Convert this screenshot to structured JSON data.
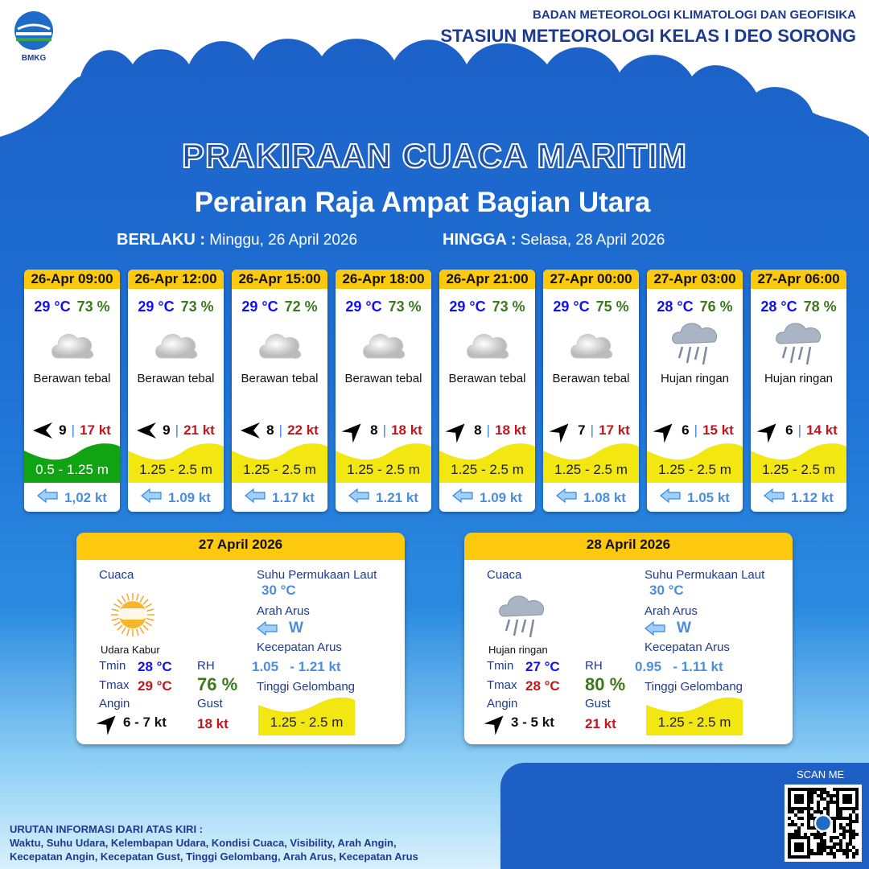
{
  "header": {
    "logo_text": "BMKG",
    "org_line1": "BADAN METEOROLOGI KLIMATOLOGI DAN GEOFISIKA",
    "org_line2": "STASIUN METEOROLOGI KELAS I DEO SORONG"
  },
  "title": "PRAKIRAAN CUACA MARITIM",
  "subtitle": "Perairan Raja Ampat Bagian Utara",
  "validity": {
    "from_label": "BERLAKU :",
    "from": "Minggu, 26 April 2026",
    "to_label": "HINGGA :",
    "to": "Selasa, 28 April 2026"
  },
  "colors": {
    "header_yellow": "#fdc90f",
    "wave_green": "#10a312",
    "wave_yellow": "#f2e711",
    "temp_blue": "#1010f0",
    "rh_green": "#3b7a1c",
    "gust_red": "#c3161c",
    "current_blue": "#4a8fdf"
  },
  "forecasts": [
    {
      "time": "26-Apr 09:00",
      "temp": "29 °C",
      "rh": "73 %",
      "icon": "cloud-icon",
      "condition": "Berawan tebal",
      "wind_dir": "west",
      "wind_speed": "9",
      "gust": "17 kt",
      "wave": "0.5 - 1.25 m",
      "wave_color": "green",
      "current": "1,02 kt"
    },
    {
      "time": "26-Apr 12:00",
      "temp": "29 °C",
      "rh": "73 %",
      "icon": "cloud-icon",
      "condition": "Berawan tebal",
      "wind_dir": "west",
      "wind_speed": "9",
      "gust": "21 kt",
      "wave": "1.25 - 2.5 m",
      "wave_color": "yellow",
      "current": "1.09 kt"
    },
    {
      "time": "26-Apr 15:00",
      "temp": "29 °C",
      "rh": "72 %",
      "icon": "cloud-icon",
      "condition": "Berawan tebal",
      "wind_dir": "west",
      "wind_speed": "8",
      "gust": "22 kt",
      "wave": "1.25 - 2.5 m",
      "wave_color": "yellow",
      "current": "1.17 kt"
    },
    {
      "time": "26-Apr 18:00",
      "temp": "29 °C",
      "rh": "73 %",
      "icon": "cloud-icon",
      "condition": "Berawan tebal",
      "wind_dir": "northeast",
      "wind_speed": "8",
      "gust": "18 kt",
      "wave": "1.25 - 2.5 m",
      "wave_color": "yellow",
      "current": "1.21 kt"
    },
    {
      "time": "26-Apr 21:00",
      "temp": "29 °C",
      "rh": "73 %",
      "icon": "cloud-icon",
      "condition": "Berawan tebal",
      "wind_dir": "northeast",
      "wind_speed": "8",
      "gust": "18 kt",
      "wave": "1.25 - 2.5 m",
      "wave_color": "yellow",
      "current": "1.09 kt"
    },
    {
      "time": "27-Apr 00:00",
      "temp": "29 °C",
      "rh": "75 %",
      "icon": "cloud-icon",
      "condition": "Berawan tebal",
      "wind_dir": "northeast",
      "wind_speed": "7",
      "gust": "17 kt",
      "wave": "1.25 - 2.5 m",
      "wave_color": "yellow",
      "current": "1.08 kt"
    },
    {
      "time": "27-Apr 03:00",
      "temp": "28 °C",
      "rh": "76 %",
      "icon": "rain-cloud-icon",
      "condition": "Hujan ringan",
      "wind_dir": "northeast",
      "wind_speed": "6",
      "gust": "15 kt",
      "wave": "1.25 - 2.5 m",
      "wave_color": "yellow",
      "current": "1.05 kt"
    },
    {
      "time": "27-Apr 06:00",
      "temp": "28 °C",
      "rh": "78 %",
      "icon": "rain-cloud-icon",
      "condition": "Hujan ringan",
      "wind_dir": "northeast",
      "wind_speed": "6",
      "gust": "14 kt",
      "wave": "1.25 - 2.5 m",
      "wave_color": "yellow",
      "current": "1.12 kt"
    }
  ],
  "labels": {
    "weather": "Cuaca",
    "sst": "Suhu Permukaan Laut",
    "current_dir": "Arah Arus",
    "current_speed": "Kecepatan Arus",
    "wave": "Tinggi Gelombang",
    "tmin": "Tmin",
    "tmax": "Tmax",
    "rh": "RH",
    "wind": "Angin",
    "gust": "Gust"
  },
  "daily": [
    {
      "date": "27 April 2026",
      "icon": "hazy-sun-icon",
      "condition": "Udara Kabur",
      "tmin": "28 °C",
      "tmax": "29 °C",
      "rh": "76 %",
      "wind": "6  - 7 kt",
      "gust": "18 kt",
      "sst": "30 °C",
      "current_dir": "W",
      "current_speed_min": "1.05",
      "current_speed_max": "- 1.21 kt",
      "wave": "1.25 - 2.5 m"
    },
    {
      "date": "28 April 2026",
      "icon": "rain-cloud-icon",
      "condition": "Hujan ringan",
      "tmin": "27 °C",
      "tmax": "28 °C",
      "rh": "80 %",
      "wind": "3  - 5 kt",
      "gust": "21 kt",
      "sst": "30 °C",
      "current_dir": "W",
      "current_speed_min": "0.95",
      "current_speed_max": "- 1.11 kt",
      "wave": "1.25 - 2.5 m"
    }
  ],
  "footer": {
    "line1": "URUTAN INFORMASI DARI ATAS KIRI :",
    "line2": "Waktu, Suhu Udara, Kelembapan Udara, Kondisi Cuaca, Visibility, Arah Angin,",
    "line3": "Kecepatan Angin, Kecepatan Gust, Tinggi Gelombang, Arah Arus, Kecepatan Arus"
  },
  "qr": {
    "label": "SCAN ME"
  }
}
